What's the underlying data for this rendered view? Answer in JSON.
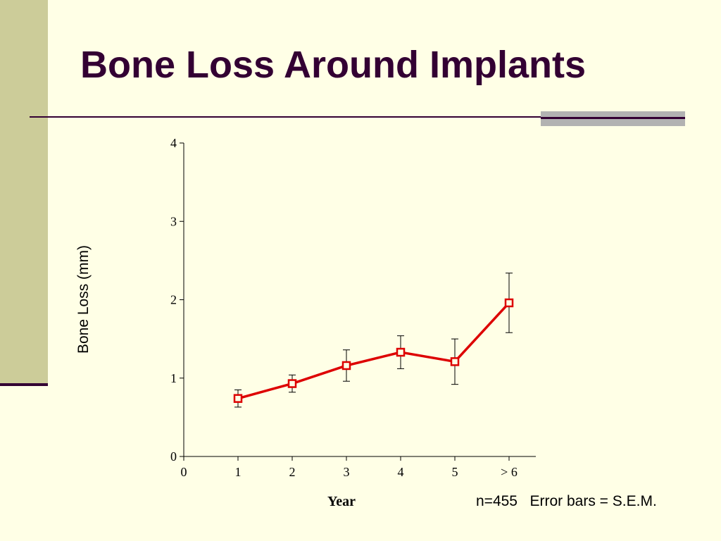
{
  "title": "Bone Loss Around Implants",
  "footnote": "n=455   Error bars = S.E.M.",
  "colors": {
    "background": "#FFFFE6",
    "left_band": "#CCCC99",
    "title": "#330033",
    "accent_bar": "#B2B2B2",
    "series": "#DD0000"
  },
  "chart_data": {
    "type": "line",
    "xlabel": "Year",
    "ylabel": "Bone Loss (mm)",
    "xlim": [
      0,
      6.5
    ],
    "ylim": [
      0,
      4
    ],
    "x_ticks": [
      0,
      1,
      2,
      3,
      4,
      5,
      6
    ],
    "x_tick_labels": [
      "0",
      "1",
      "2",
      "3",
      "4",
      "5",
      "> 6"
    ],
    "y_ticks": [
      0,
      1,
      2,
      3,
      4
    ],
    "y_tick_labels": [
      "0",
      "1",
      "2",
      "3",
      "4"
    ],
    "grid": false,
    "series": [
      {
        "x": [
          1,
          2,
          3,
          4,
          5,
          6
        ],
        "y": [
          0.74,
          0.93,
          1.16,
          1.33,
          1.21,
          1.96
        ],
        "error_sem": [
          0.11,
          0.11,
          0.2,
          0.21,
          0.29,
          0.38
        ],
        "marker": "open-square",
        "color": "#DD0000"
      }
    ]
  }
}
